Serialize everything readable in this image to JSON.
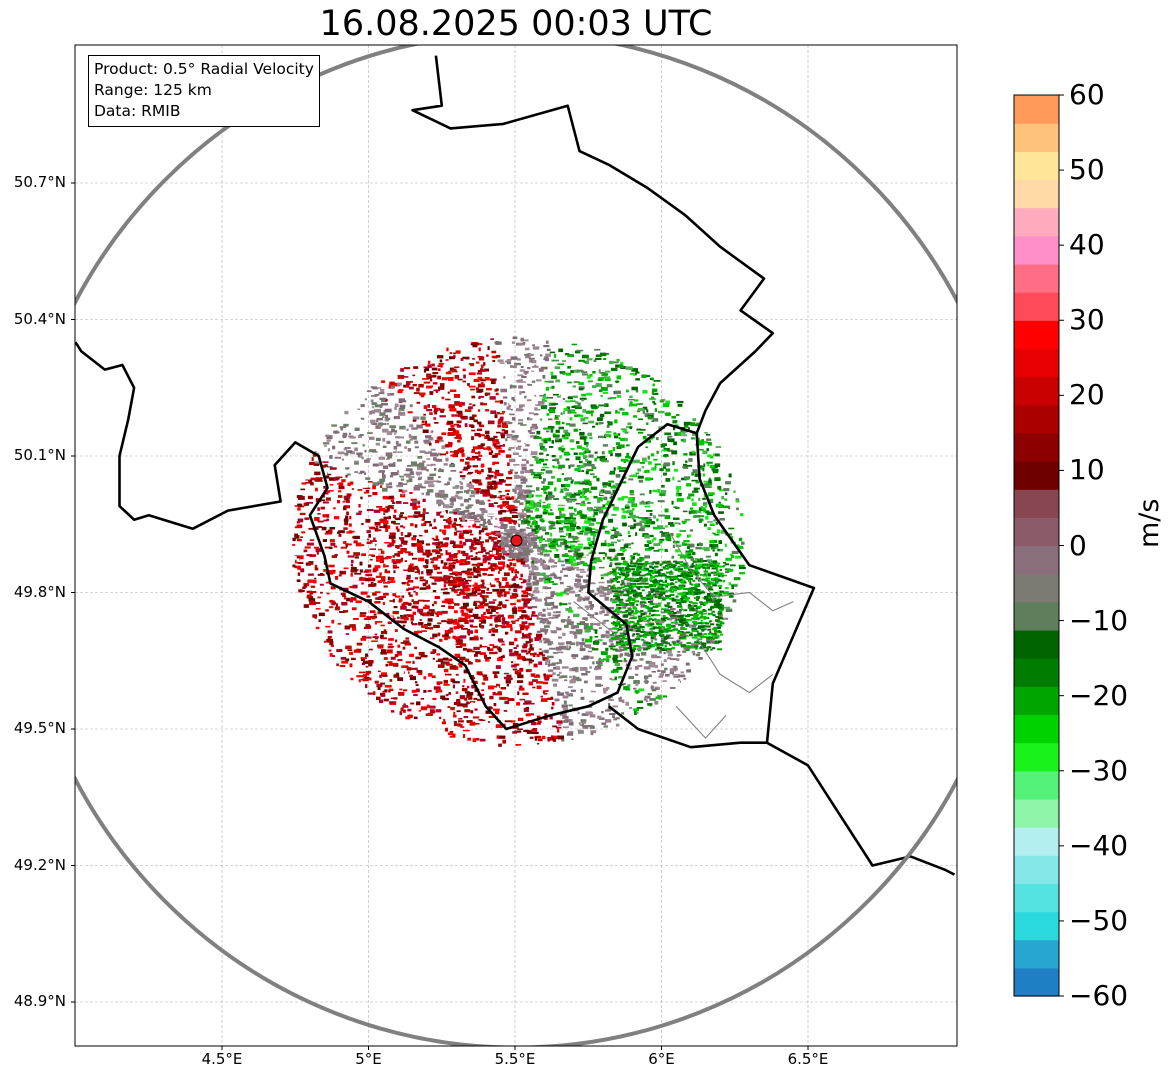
{
  "title": "16.08.2025 00:03 UTC",
  "info": {
    "product": "Product: 0.5° Radial Velocity",
    "range": "Range: 125 km",
    "data": "Data: RMIB"
  },
  "map": {
    "lon_range": [
      4.0,
      7.0
    ],
    "lat_range": [
      48.8,
      50.98
    ],
    "radar_site": {
      "lon": 5.505,
      "lat": 49.914,
      "marker_color": "#e8141a"
    },
    "range_ring_color": "#808080",
    "border_color": "#000000",
    "admin_border_color": "#808080",
    "grid": true
  },
  "axes": {
    "lat_ticks": [
      {
        "value": 50.7,
        "label": "50.7°N"
      },
      {
        "value": 50.4,
        "label": "50.4°N"
      },
      {
        "value": 50.1,
        "label": "50.1°N"
      },
      {
        "value": 49.8,
        "label": "49.8°N"
      },
      {
        "value": 49.5,
        "label": "49.5°N"
      },
      {
        "value": 49.2,
        "label": "49.2°N"
      },
      {
        "value": 48.9,
        "label": "48.9°N"
      }
    ],
    "lon_ticks": [
      {
        "value": 4.5,
        "label": "4.5°E"
      },
      {
        "value": 5.0,
        "label": "5°E"
      },
      {
        "value": 5.5,
        "label": "5.5°E"
      },
      {
        "value": 6.0,
        "label": "6°E"
      },
      {
        "value": 6.5,
        "label": "6.5°E"
      }
    ]
  },
  "colorbar": {
    "unit": "m/s",
    "min": -60,
    "max": 60,
    "ticks": [
      {
        "value": 60,
        "label": "60"
      },
      {
        "value": 50,
        "label": "50"
      },
      {
        "value": 40,
        "label": "40"
      },
      {
        "value": 30,
        "label": "30"
      },
      {
        "value": 20,
        "label": "20"
      },
      {
        "value": 10,
        "label": "10"
      },
      {
        "value": 0,
        "label": "0"
      },
      {
        "value": -10,
        "label": "−10"
      },
      {
        "value": -20,
        "label": "−20"
      },
      {
        "value": -30,
        "label": "−30"
      },
      {
        "value": -40,
        "label": "−40"
      },
      {
        "value": -50,
        "label": "−50"
      },
      {
        "value": -60,
        "label": "−60"
      }
    ],
    "stops": [
      "#1f7ec4",
      "#27a6d0",
      "#2ad9dc",
      "#55e3e2",
      "#85e8e8",
      "#b4efef",
      "#8df5a8",
      "#55f27a",
      "#19f319",
      "#00d200",
      "#00a500",
      "#007d00",
      "#006400",
      "#5e7e5c",
      "#7b7b74",
      "#8a6e7b",
      "#8c5a68",
      "#884750",
      "#6e0000",
      "#8c0000",
      "#aa0000",
      "#c80000",
      "#e60000",
      "#ff0000",
      "#ff4a5a",
      "#ff6e84",
      "#ff8fc8",
      "#ffaabd",
      "#ffd9a8",
      "#ffe598",
      "#ffc27a",
      "#ff9a5a"
    ]
  }
}
